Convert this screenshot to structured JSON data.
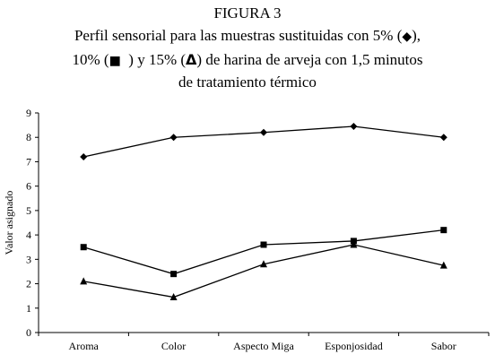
{
  "figure_label": "FIGURA 3",
  "caption": {
    "line1_text": "Perfil sensorial para las muestras sustituidas con 5% (",
    "line1_symbol": "◆",
    "line1_end": "),",
    "line2_a": "10% (",
    "line2_symbol": "■",
    "line2_b": "  ) y 15% (",
    "line2_symbol2": "Δ",
    "line2_c": ") de harina de arveja con 1,5 minutos",
    "line3": "de tratamiento térmico"
  },
  "chart_data": {
    "type": "line",
    "title": "FIGURA 3",
    "xlabel": "",
    "ylabel": "Valor asignado",
    "ylim": [
      0,
      9
    ],
    "yticks": [
      "0",
      "1",
      "2",
      "3",
      "4",
      "5",
      "6",
      "7",
      "8",
      "9"
    ],
    "categories": [
      "Aroma",
      "Color",
      "Aspecto Miga",
      "Esponjosidad",
      "Sabor"
    ],
    "grid": false,
    "series": [
      {
        "name": "5%",
        "marker": "diamond",
        "values": [
          7.2,
          8.0,
          8.2,
          8.45,
          8.0
        ]
      },
      {
        "name": "10%",
        "marker": "square",
        "values": [
          3.5,
          2.4,
          3.6,
          3.75,
          4.2
        ]
      },
      {
        "name": "15%",
        "marker": "triangle",
        "values": [
          2.1,
          1.45,
          2.8,
          3.6,
          2.75
        ]
      }
    ]
  }
}
